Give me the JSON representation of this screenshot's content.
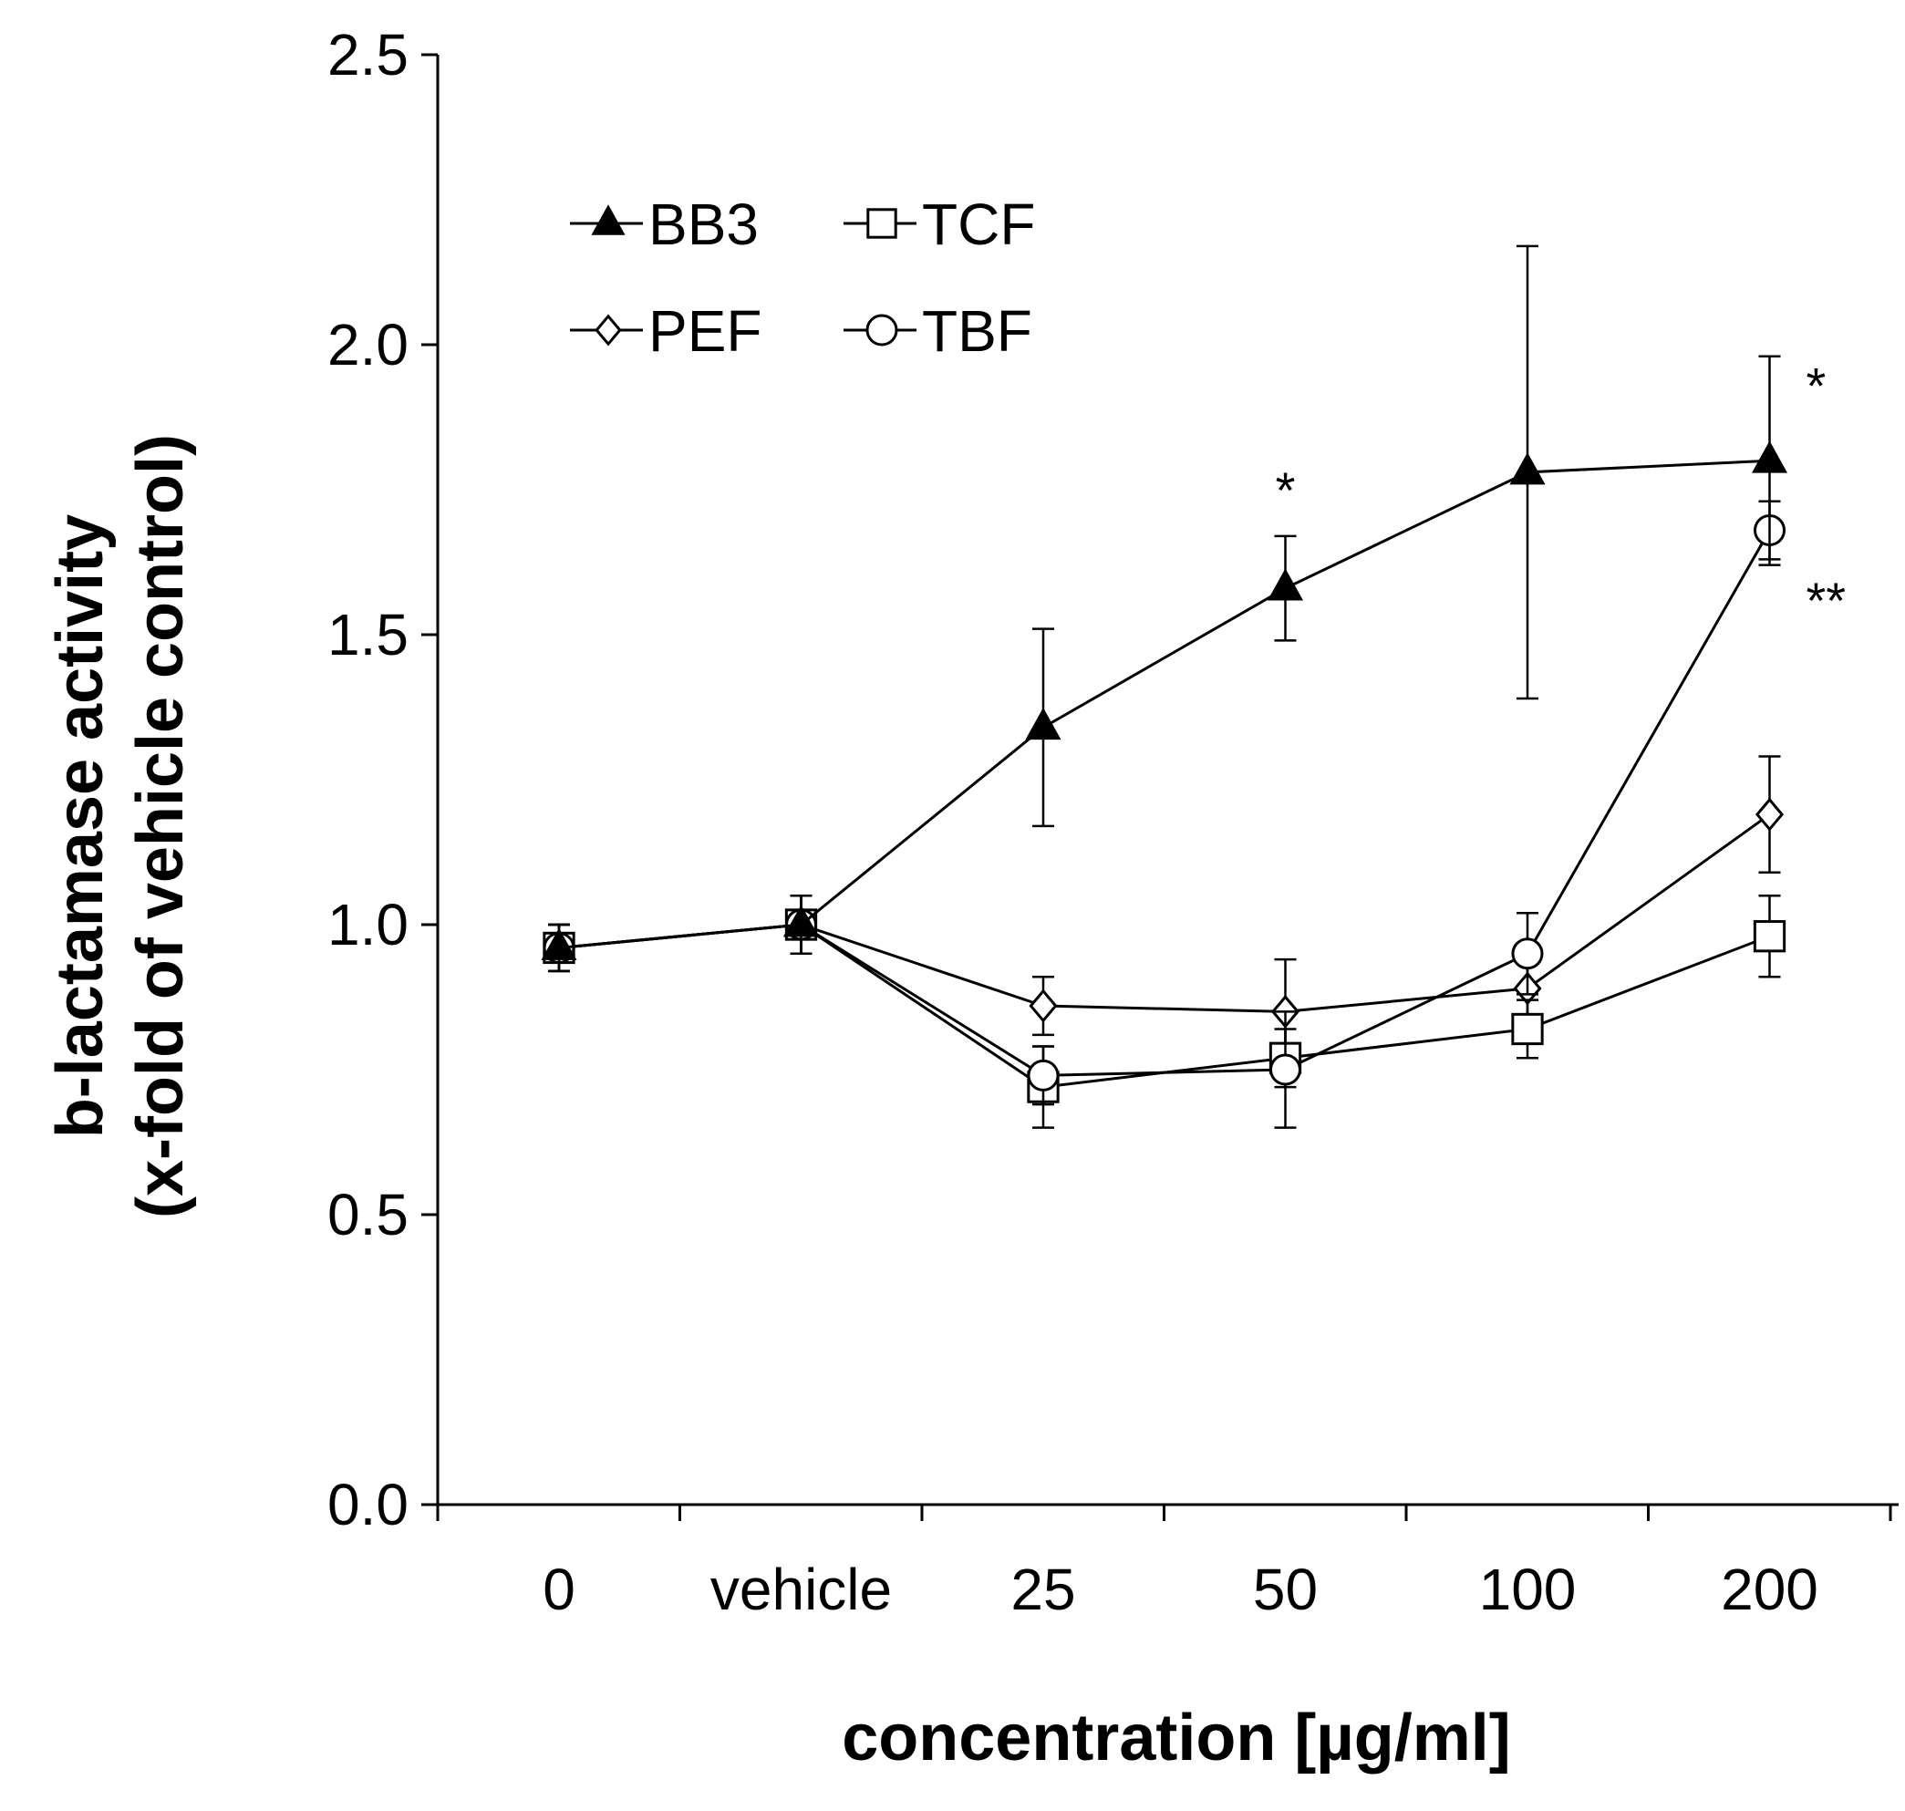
{
  "chart_data": {
    "type": "line",
    "title": "",
    "xlabel": "concentration [µg/ml]",
    "ylabel": [
      "b-lactamase activity",
      "(x-fold of vehicle control)"
    ],
    "categories": [
      "0",
      "vehicle",
      "25",
      "50",
      "100",
      "200"
    ],
    "ylim": [
      0,
      2.5
    ],
    "yticks": [
      "0.0",
      "0.5",
      "1.0",
      "1.5",
      "2.0",
      "2.5"
    ],
    "grid": false,
    "legend_position": "top-left",
    "series": [
      {
        "name": "BB3",
        "marker": "triangle",
        "fill": "#000000",
        "values": [
          0.96,
          1.0,
          1.34,
          1.58,
          1.78,
          1.8
        ],
        "errors": [
          0.04,
          0.05,
          0.17,
          0.09,
          0.39,
          0.18
        ]
      },
      {
        "name": "TCF",
        "marker": "square",
        "fill": "#ffffff",
        "values": [
          0.96,
          1.0,
          0.72,
          0.77,
          0.82,
          0.98
        ],
        "errors": [
          0.04,
          0.05,
          0.07,
          0.05,
          0.05,
          0.07
        ]
      },
      {
        "name": "PEF",
        "marker": "diamond",
        "fill": "#ffffff",
        "values": [
          0.96,
          1.0,
          0.86,
          0.85,
          0.89,
          1.19
        ],
        "errors": [
          0.04,
          0.05,
          0.05,
          0.09,
          0.05,
          0.1
        ]
      },
      {
        "name": "TBF",
        "marker": "circle",
        "fill": "#ffffff",
        "values": [
          0.96,
          1.0,
          0.74,
          0.75,
          0.95,
          1.68
        ],
        "errors": [
          0.04,
          0.05,
          0.05,
          0.1,
          0.07,
          0.05
        ]
      }
    ],
    "annotations": [
      {
        "text": "*",
        "category": "50",
        "y": 1.75
      },
      {
        "text": "*",
        "category": "200",
        "y": 1.93,
        "placement": "right"
      },
      {
        "text": "**",
        "category": "200",
        "y": 1.56,
        "placement": "right"
      }
    ]
  }
}
